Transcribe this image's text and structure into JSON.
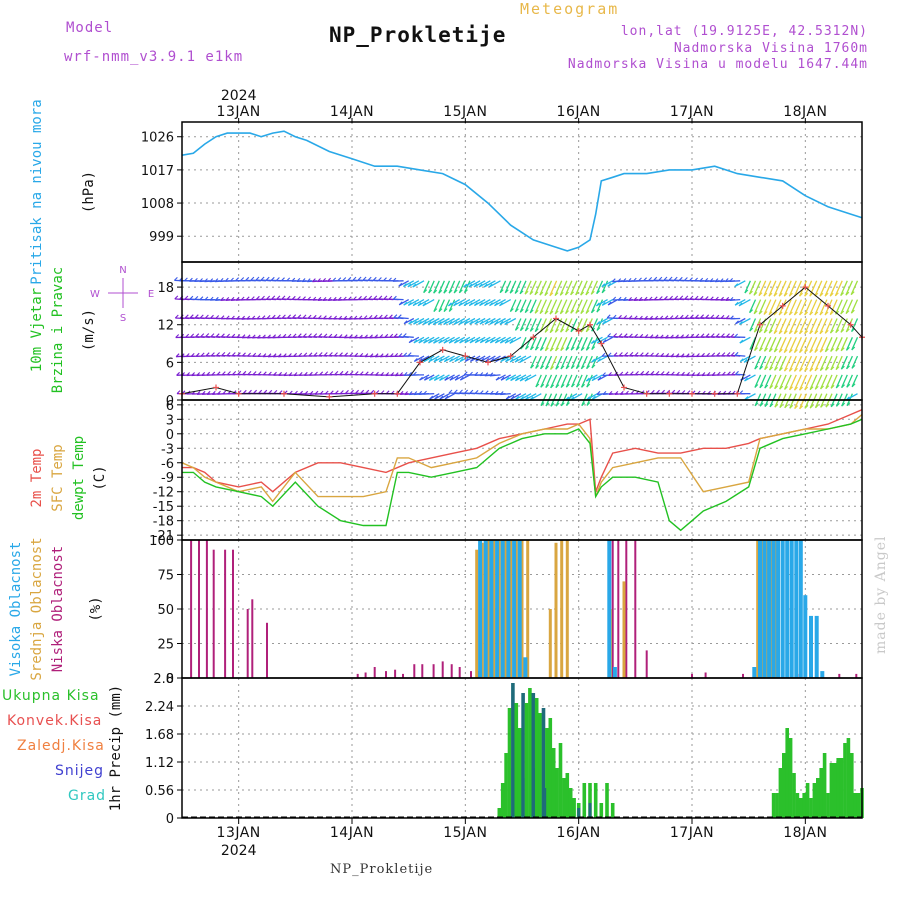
{
  "header": {
    "model_label": "Model",
    "model_name": "wrf-nmm_v3.9.1 e1km",
    "title": "NP_Prokletije",
    "meteogram_label": "Meteogram",
    "lonlat": "lon,lat (19.9125E, 42.5312N)",
    "elevation": "Nadmorska Visina 1760m",
    "model_elevation": "Nadmorska Visina u modelu 1647.44m",
    "year_top": "2024",
    "year_bottom": "2024",
    "footer_station": "NP_Prokletije",
    "made_by": "made by Angel"
  },
  "axis": {
    "x_day_labels": [
      "13JAN",
      "14JAN",
      "15JAN",
      "16JAN",
      "17JAN",
      "18JAN"
    ]
  },
  "panel_labels": {
    "pressure": [
      "Pritisak na nivou mora"
    ],
    "pressure_unit": "(hPa)",
    "wind": [
      "10m Vjetar",
      "Brzina i Pravac"
    ],
    "wind_unit": "(m/s)",
    "compass": {
      "n": "N",
      "w": "W",
      "e": "E",
      "s": "S"
    },
    "temp": [
      "2m Temp",
      "SFC Temp",
      "dewpt Temp"
    ],
    "temp_unit": "(C)",
    "cloud": [
      "Visoka Oblacnost",
      "Srednja Oblacnost",
      "Niska Oblacnost"
    ],
    "cloud_unit": "(%)",
    "precip_unit": "1hr Precip (mm)",
    "precip_legend": [
      "Ukupna Kisa",
      "Konvek.Kisa",
      "Zaledj.Kisa",
      "Snijeg",
      "Grad"
    ]
  },
  "colors": {
    "pressure": "#29a8e8",
    "t2m": "#e8504a",
    "tsfc": "#d9a640",
    "tdew": "#22c122",
    "cloud_high": "#29a8e8",
    "cloud_mid": "#d9a640",
    "cloud_low": "#b0207a",
    "total_rain": "#2bc02b",
    "conv_rain": "#e85050",
    "freezing_rain": "#f08040",
    "snow": "#4040d0",
    "hail": "#30c8c0",
    "precip_dark": "#1f6b7a",
    "grid": "#aaaaaa",
    "header_purple": "#b04fd0",
    "title_label_blue": "#29a8e8",
    "label_green": "#22c122"
  },
  "chart_data": [
    {
      "type": "line",
      "name": "sea-level-pressure",
      "ylabel": "(hPa)",
      "ylim": [
        992,
        1030
      ],
      "yticks": [
        999,
        1008,
        1017,
        1026
      ],
      "x_unit": "days from 13JAN 00UTC",
      "xlim": [
        -0.5,
        5.5
      ],
      "grid": true,
      "series": [
        {
          "x": [
            -0.5,
            -0.4,
            -0.3,
            -0.2,
            -0.1,
            0,
            0.1,
            0.2,
            0.3,
            0.4,
            0.5,
            0.6,
            0.8,
            1.0,
            1.2,
            1.4,
            1.6,
            1.8,
            2.0,
            2.2,
            2.4,
            2.6,
            2.8,
            2.9,
            3.0,
            3.1,
            3.15,
            3.2,
            3.3,
            3.4,
            3.5,
            3.6,
            3.8,
            4.0,
            4.2,
            4.4,
            4.6,
            4.8,
            5.0,
            5.2,
            5.4,
            5.5
          ],
          "y": [
            1021,
            1021.5,
            1024,
            1026,
            1027,
            1027,
            1027,
            1026,
            1027,
            1027.5,
            1026,
            1025,
            1022,
            1020,
            1018,
            1018,
            1017,
            1016,
            1013,
            1008,
            1002,
            998,
            996,
            995,
            996,
            998,
            1005,
            1014,
            1015,
            1016,
            1016,
            1016,
            1017,
            1017,
            1018,
            1016,
            1015,
            1014,
            1010,
            1007,
            1005,
            1004
          ]
        }
      ]
    },
    {
      "type": "scatter",
      "name": "wind-10m",
      "ylabel": "(m/s)",
      "ylim": [
        0,
        22
      ],
      "yticks": [
        0,
        6,
        12,
        18
      ],
      "x_unit": "days from 13JAN 00UTC",
      "xlim": [
        -0.5,
        5.5
      ],
      "grid": true,
      "speed_x": [
        -0.5,
        -0.2,
        0,
        0.4,
        0.8,
        1.2,
        1.4,
        1.6,
        1.8,
        2.0,
        2.2,
        2.4,
        2.6,
        2.8,
        3.0,
        3.1,
        3.2,
        3.4,
        3.6,
        3.8,
        4.0,
        4.2,
        4.4,
        4.6,
        4.8,
        5.0,
        5.2,
        5.4,
        5.5
      ],
      "speed_y": [
        1,
        2,
        1,
        1,
        0.5,
        1,
        1,
        6,
        8,
        7,
        6,
        7,
        10,
        13,
        11,
        12,
        9,
        2,
        1,
        1,
        1,
        1,
        1,
        12,
        15,
        18,
        15,
        12,
        10
      ]
    },
    {
      "type": "line",
      "name": "temperature",
      "ylabel": "(C)",
      "ylim": [
        -22,
        7
      ],
      "yticks": [
        -21,
        -18,
        -15,
        -12,
        -9,
        -6,
        -3,
        0,
        3,
        6
      ],
      "x_unit": "days from 13JAN 00UTC",
      "xlim": [
        -0.5,
        5.5
      ],
      "grid": true,
      "series": [
        {
          "name": "2m Temp",
          "x": [
            -0.5,
            -0.4,
            -0.3,
            -0.2,
            0,
            0.2,
            0.3,
            0.5,
            0.7,
            0.9,
            1.1,
            1.3,
            1.5,
            1.7,
            1.9,
            2.1,
            2.3,
            2.5,
            2.7,
            2.9,
            3.0,
            3.1,
            3.15,
            3.2,
            3.3,
            3.5,
            3.7,
            3.9,
            4.1,
            4.3,
            4.5,
            4.6,
            4.8,
            5.0,
            5.2,
            5.4,
            5.5
          ],
          "y": [
            -7,
            -7,
            -8,
            -10,
            -11,
            -10,
            -12,
            -8,
            -6,
            -6,
            -7,
            -8,
            -6,
            -5,
            -4,
            -3,
            -1,
            0,
            1,
            2,
            2,
            3,
            -12,
            -9,
            -4,
            -3,
            -4,
            -4,
            -3,
            -3,
            -2,
            -1,
            0,
            1,
            2,
            4,
            5
          ]
        },
        {
          "name": "SFC Temp",
          "x": [
            -0.5,
            -0.4,
            -0.3,
            -0.2,
            0,
            0.2,
            0.3,
            0.5,
            0.7,
            0.9,
            1.1,
            1.3,
            1.4,
            1.5,
            1.7,
            1.9,
            2.1,
            2.3,
            2.5,
            2.7,
            2.9,
            3.0,
            3.1,
            3.15,
            3.2,
            3.3,
            3.5,
            3.7,
            3.9,
            4.1,
            4.3,
            4.5,
            4.6,
            4.8,
            5.0,
            5.2,
            5.4,
            5.5
          ],
          "y": [
            -6,
            -7,
            -9,
            -10,
            -12,
            -11,
            -14,
            -8,
            -13,
            -13,
            -13,
            -12,
            -5,
            -5,
            -7,
            -6,
            -5,
            -2,
            0,
            1,
            1,
            2,
            -1,
            -13,
            -10,
            -7,
            -6,
            -5,
            -5,
            -12,
            -11,
            -10,
            -1,
            0,
            1,
            1,
            2,
            4
          ]
        },
        {
          "name": "dewpt Temp",
          "x": [
            -0.5,
            -0.4,
            -0.3,
            -0.2,
            0,
            0.2,
            0.3,
            0.5,
            0.7,
            0.9,
            1.1,
            1.3,
            1.4,
            1.5,
            1.7,
            1.9,
            2.1,
            2.3,
            2.5,
            2.7,
            2.9,
            3.0,
            3.1,
            3.15,
            3.2,
            3.3,
            3.5,
            3.7,
            3.8,
            3.9,
            4.0,
            4.1,
            4.3,
            4.5,
            4.6,
            4.8,
            5.0,
            5.2,
            5.4,
            5.5
          ],
          "y": [
            -8,
            -8,
            -10,
            -11,
            -12,
            -13,
            -15,
            -10,
            -15,
            -18,
            -19,
            -19,
            -8,
            -8,
            -9,
            -8,
            -7,
            -3,
            -1,
            0,
            0,
            1,
            -2,
            -13,
            -11,
            -9,
            -9,
            -10,
            -18,
            -20,
            -18,
            -16,
            -14,
            -11,
            -3,
            -1,
            0,
            1,
            2,
            3
          ]
        }
      ]
    },
    {
      "type": "bar",
      "name": "cloud-cover",
      "ylabel": "(%)",
      "ylim": [
        0,
        100
      ],
      "yticks": [
        0,
        25,
        50,
        75,
        100
      ],
      "x_unit": "days from 13JAN 00UTC",
      "xlim": [
        -0.5,
        5.5
      ],
      "grid": true,
      "series": [
        {
          "name": "Niska Oblacnost",
          "x": [
            -0.42,
            -0.35,
            -0.28,
            -0.22,
            -0.12,
            -0.05,
            0.08,
            0.12,
            0.25,
            0.3,
            0.38,
            1.05,
            1.12,
            1.2,
            1.3,
            1.38,
            1.45,
            1.55,
            1.62,
            1.72,
            1.8,
            1.88,
            1.95,
            2.05,
            2.12,
            2.2,
            2.3,
            3.3,
            3.35,
            3.42,
            3.5,
            3.6,
            4.0,
            4.12,
            4.45,
            4.6,
            4.75,
            4.95,
            5.1,
            5.3,
            5.45
          ],
          "y": [
            100,
            100,
            100,
            93,
            93,
            93,
            50,
            57,
            40,
            0,
            0,
            3,
            4,
            8,
            5,
            6,
            3,
            10,
            10,
            10,
            12,
            10,
            8,
            5,
            5,
            3,
            3,
            100,
            100,
            100,
            100,
            20,
            3,
            4,
            3,
            4,
            4,
            3,
            4,
            3,
            3
          ]
        },
        {
          "name": "Srednja Oblacnost",
          "x": [
            2.1,
            2.15,
            2.2,
            2.25,
            2.3,
            2.35,
            2.4,
            2.45,
            2.5,
            2.55,
            2.75,
            2.8,
            2.85,
            2.9,
            3.28,
            3.4,
            4.58,
            4.62,
            4.66,
            4.7,
            4.74
          ],
          "y": [
            93,
            98,
            100,
            100,
            100,
            100,
            100,
            100,
            100,
            100,
            50,
            98,
            100,
            100,
            50,
            70,
            100,
            100,
            100,
            100,
            100
          ]
        },
        {
          "name": "Visoka Oblacnost",
          "x": [
            2.13,
            2.18,
            2.23,
            2.28,
            2.33,
            2.38,
            2.43,
            2.48,
            2.53,
            3.27,
            3.32,
            4.55,
            4.6,
            4.64,
            4.68,
            4.72,
            4.76,
            4.8,
            4.84,
            4.88,
            4.92,
            4.96,
            5.0,
            5.05,
            5.1,
            5.15
          ],
          "y": [
            100,
            100,
            100,
            100,
            100,
            100,
            100,
            100,
            15,
            100,
            8,
            8,
            100,
            100,
            100,
            100,
            100,
            100,
            100,
            100,
            100,
            100,
            60,
            45,
            45,
            5
          ]
        }
      ]
    },
    {
      "type": "bar",
      "name": "precipitation",
      "ylabel": "1hr Precip (mm)",
      "ylim": [
        0,
        2.8
      ],
      "yticks": [
        0,
        0.56,
        1.12,
        1.68,
        2.24,
        2.8
      ],
      "x_unit": "days from 13JAN 00UTC",
      "xlim": [
        -0.5,
        5.5
      ],
      "grid": true,
      "series": [
        {
          "name": "Ukupna Kisa",
          "x": [
            2.3,
            2.33,
            2.36,
            2.39,
            2.42,
            2.45,
            2.48,
            2.51,
            2.54,
            2.57,
            2.6,
            2.63,
            2.66,
            2.69,
            2.72,
            2.75,
            2.78,
            2.81,
            2.84,
            2.87,
            2.9,
            2.93,
            2.96,
            3.0,
            3.05,
            3.1,
            3.15,
            3.2,
            3.25,
            3.3,
            4.72,
            4.75,
            4.78,
            4.81,
            4.84,
            4.87,
            4.9,
            4.93,
            4.96,
            4.99,
            5.02,
            5.05,
            5.08,
            5.11,
            5.14,
            5.17,
            5.2,
            5.23,
            5.26,
            5.29,
            5.32,
            5.35,
            5.38,
            5.41,
            5.44,
            5.47,
            5.5
          ],
          "y": [
            0.2,
            0.7,
            1.3,
            2.2,
            2.7,
            2.3,
            1.8,
            2.5,
            2.3,
            2.6,
            2.5,
            2.4,
            2.1,
            2.2,
            1.8,
            2.0,
            1.4,
            1.0,
            1.5,
            0.8,
            0.9,
            0.6,
            0.4,
            0.3,
            0.7,
            0.7,
            0.7,
            0.3,
            0.7,
            0.3,
            0.5,
            0.5,
            1.0,
            1.3,
            1.8,
            1.6,
            0.9,
            0.5,
            0.4,
            0.5,
            0.7,
            0.4,
            0.7,
            0.8,
            1.0,
            1.3,
            0.5,
            1.1,
            1.1,
            1.2,
            1.2,
            1.5,
            1.6,
            1.3,
            0.5,
            0.5,
            0.6
          ]
        },
        {
          "name": "Snijeg",
          "x": [
            2.42,
            2.51,
            2.6,
            2.7,
            3.0,
            3.1
          ],
          "y": [
            1.0,
            0.8,
            1.0,
            0.6,
            0.2,
            0.3
          ]
        }
      ]
    }
  ]
}
